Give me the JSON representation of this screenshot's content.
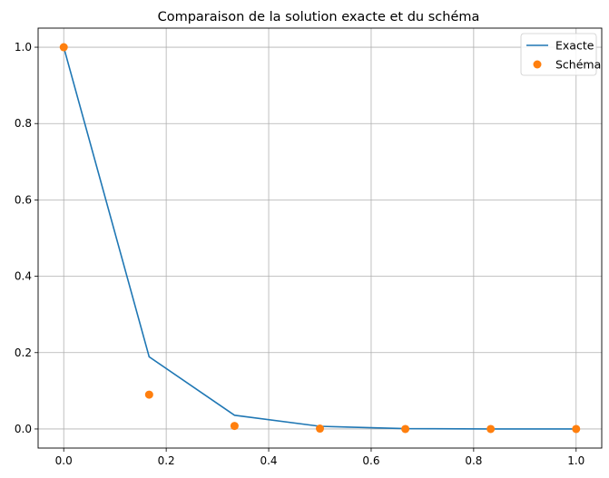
{
  "chart_data": {
    "type": "line",
    "title": "Comparaison de la solution exacte et du schéma",
    "xlabel": "",
    "ylabel": "",
    "xlim": [
      -0.05,
      1.05
    ],
    "ylim": [
      -0.05,
      1.05
    ],
    "grid": true,
    "legend_position": "top-right",
    "x_ticks": [
      "0.0",
      "0.2",
      "0.4",
      "0.6",
      "0.8",
      "1.0"
    ],
    "y_ticks": [
      "0.0",
      "0.2",
      "0.4",
      "0.6",
      "0.8",
      "1.0"
    ],
    "series": [
      {
        "name": "Exacte",
        "kind": "line",
        "color": "#1f77b4",
        "x": [
          0.0,
          0.1667,
          0.3333,
          0.5,
          0.6667,
          0.8333,
          1.0
        ],
        "y": [
          1.0,
          0.189,
          0.036,
          0.007,
          0.001,
          0.0,
          0.0
        ]
      },
      {
        "name": "Schéma",
        "kind": "scatter",
        "color": "#ff7f0e",
        "x": [
          0.0,
          0.1667,
          0.3333,
          0.5,
          0.6667,
          0.8333,
          1.0
        ],
        "y": [
          1.0,
          0.09,
          0.008,
          0.001,
          0.0,
          0.0,
          0.0
        ]
      }
    ]
  }
}
